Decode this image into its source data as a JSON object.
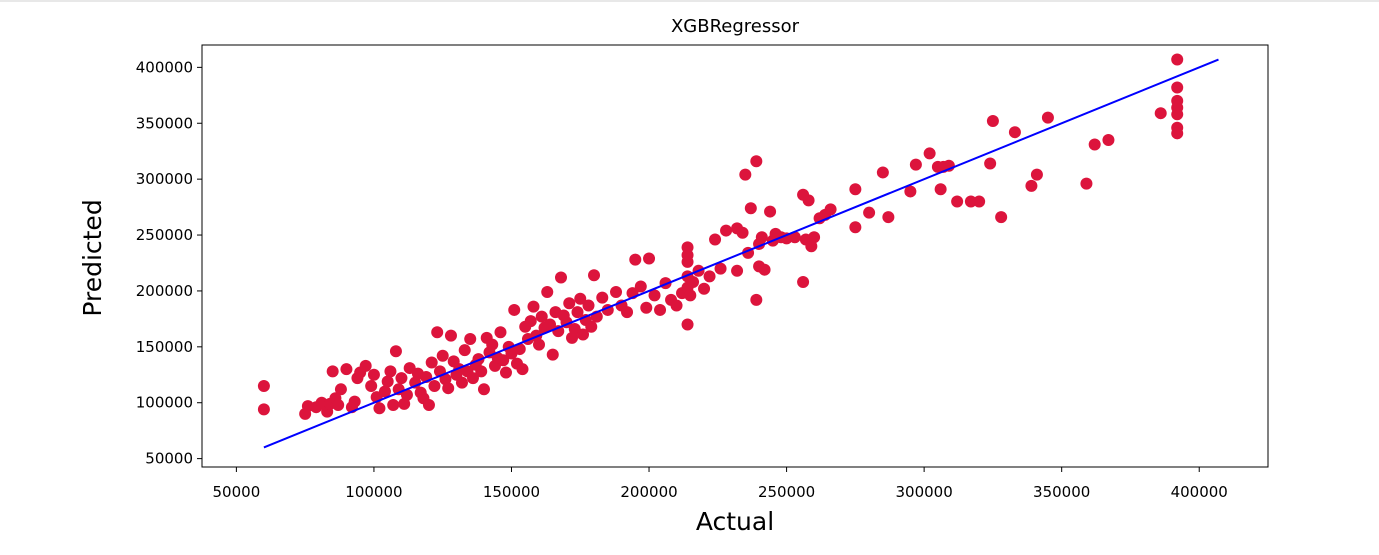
{
  "chart_data": {
    "type": "scatter",
    "title": "XGBRegressor",
    "xlabel": "Actual",
    "ylabel": "Predicted",
    "xlim": [
      37500,
      425000
    ],
    "ylim": [
      42500,
      420000
    ],
    "xticks": [
      50000,
      100000,
      150000,
      200000,
      250000,
      300000,
      350000,
      400000
    ],
    "yticks": [
      50000,
      100000,
      150000,
      200000,
      250000,
      300000,
      350000,
      400000
    ],
    "xtick_labels": [
      "50000",
      "100000",
      "150000",
      "200000",
      "250000",
      "300000",
      "350000",
      "400000"
    ],
    "ytick_labels": [
      "50000",
      "100000",
      "150000",
      "200000",
      "250000",
      "300000",
      "350000",
      "400000"
    ],
    "grid": false,
    "colors": {
      "points": "#dc143c",
      "line": "#0000ff"
    },
    "fit_line": {
      "x": [
        60000,
        407000
      ],
      "y": [
        60000,
        407000
      ]
    },
    "points": [
      [
        60000,
        94000
      ],
      [
        60000,
        115000
      ],
      [
        75000,
        90000
      ],
      [
        76000,
        97000
      ],
      [
        79000,
        96000
      ],
      [
        81000,
        100000
      ],
      [
        83000,
        92000
      ],
      [
        84000,
        99000
      ],
      [
        85000,
        128000
      ],
      [
        86000,
        104000
      ],
      [
        87000,
        98000
      ],
      [
        88000,
        112000
      ],
      [
        90000,
        130000
      ],
      [
        92000,
        96000
      ],
      [
        93000,
        101000
      ],
      [
        94000,
        122000
      ],
      [
        95000,
        127000
      ],
      [
        97000,
        133000
      ],
      [
        99000,
        115000
      ],
      [
        100000,
        125000
      ],
      [
        101000,
        105000
      ],
      [
        102000,
        95000
      ],
      [
        104000,
        110000
      ],
      [
        105000,
        119000
      ],
      [
        106000,
        128000
      ],
      [
        107000,
        98000
      ],
      [
        108000,
        146000
      ],
      [
        109000,
        112000
      ],
      [
        110000,
        122000
      ],
      [
        111000,
        99000
      ],
      [
        112000,
        107000
      ],
      [
        113000,
        131000
      ],
      [
        115000,
        118000
      ],
      [
        116000,
        126000
      ],
      [
        117000,
        109000
      ],
      [
        118000,
        104000
      ],
      [
        119000,
        123000
      ],
      [
        120000,
        98000
      ],
      [
        121000,
        136000
      ],
      [
        122000,
        115000
      ],
      [
        123000,
        163000
      ],
      [
        124000,
        128000
      ],
      [
        125000,
        142000
      ],
      [
        126000,
        121000
      ],
      [
        127000,
        113000
      ],
      [
        128000,
        160000
      ],
      [
        129000,
        137000
      ],
      [
        130000,
        125000
      ],
      [
        131000,
        130000
      ],
      [
        132000,
        118000
      ],
      [
        133000,
        147000
      ],
      [
        134000,
        128000
      ],
      [
        135000,
        157000
      ],
      [
        136000,
        122000
      ],
      [
        137000,
        134000
      ],
      [
        138000,
        139000
      ],
      [
        139000,
        128000
      ],
      [
        140000,
        112000
      ],
      [
        141000,
        158000
      ],
      [
        142000,
        145000
      ],
      [
        143000,
        152000
      ],
      [
        144000,
        133000
      ],
      [
        145000,
        140000
      ],
      [
        146000,
        163000
      ],
      [
        147000,
        138000
      ],
      [
        148000,
        127000
      ],
      [
        149000,
        150000
      ],
      [
        150000,
        144000
      ],
      [
        151000,
        183000
      ],
      [
        152000,
        135000
      ],
      [
        153000,
        148000
      ],
      [
        154000,
        130000
      ],
      [
        155000,
        168000
      ],
      [
        156000,
        157000
      ],
      [
        157000,
        173000
      ],
      [
        158000,
        186000
      ],
      [
        159000,
        160000
      ],
      [
        160000,
        152000
      ],
      [
        161000,
        177000
      ],
      [
        162000,
        167000
      ],
      [
        163000,
        199000
      ],
      [
        164000,
        170000
      ],
      [
        165000,
        143000
      ],
      [
        166000,
        181000
      ],
      [
        167000,
        164000
      ],
      [
        168000,
        212000
      ],
      [
        169000,
        178000
      ],
      [
        170000,
        172000
      ],
      [
        171000,
        189000
      ],
      [
        172000,
        158000
      ],
      [
        173000,
        166000
      ],
      [
        174000,
        181000
      ],
      [
        175000,
        193000
      ],
      [
        176000,
        161000
      ],
      [
        177000,
        174000
      ],
      [
        178000,
        187000
      ],
      [
        179000,
        168000
      ],
      [
        180000,
        214000
      ],
      [
        181000,
        177000
      ],
      [
        183000,
        194000
      ],
      [
        185000,
        183000
      ],
      [
        188000,
        199000
      ],
      [
        190000,
        187000
      ],
      [
        192000,
        181000
      ],
      [
        194000,
        198000
      ],
      [
        195000,
        228000
      ],
      [
        197000,
        204000
      ],
      [
        199000,
        185000
      ],
      [
        200000,
        229000
      ],
      [
        202000,
        196000
      ],
      [
        204000,
        183000
      ],
      [
        206000,
        207000
      ],
      [
        208000,
        192000
      ],
      [
        210000,
        187000
      ],
      [
        212000,
        198000
      ],
      [
        214000,
        239000
      ],
      [
        214000,
        232000
      ],
      [
        214000,
        226000
      ],
      [
        214000,
        213000
      ],
      [
        214000,
        203000
      ],
      [
        214000,
        170000
      ],
      [
        215000,
        196000
      ],
      [
        216000,
        208000
      ],
      [
        218000,
        218000
      ],
      [
        220000,
        202000
      ],
      [
        222000,
        213000
      ],
      [
        224000,
        246000
      ],
      [
        226000,
        220000
      ],
      [
        228000,
        254000
      ],
      [
        232000,
        218000
      ],
      [
        232000,
        256000
      ],
      [
        234000,
        252000
      ],
      [
        235000,
        304000
      ],
      [
        236000,
        234000
      ],
      [
        237000,
        274000
      ],
      [
        239000,
        316000
      ],
      [
        239000,
        192000
      ],
      [
        240000,
        242000
      ],
      [
        240000,
        222000
      ],
      [
        241000,
        248000
      ],
      [
        242000,
        219000
      ],
      [
        244000,
        271000
      ],
      [
        245000,
        245000
      ],
      [
        246000,
        251000
      ],
      [
        248000,
        248000
      ],
      [
        250000,
        247000
      ],
      [
        253000,
        248000
      ],
      [
        256000,
        286000
      ],
      [
        256000,
        208000
      ],
      [
        257000,
        246000
      ],
      [
        258000,
        281000
      ],
      [
        259000,
        240000
      ],
      [
        260000,
        248000
      ],
      [
        262000,
        265000
      ],
      [
        264000,
        268000
      ],
      [
        266000,
        273000
      ],
      [
        275000,
        257000
      ],
      [
        275000,
        291000
      ],
      [
        280000,
        270000
      ],
      [
        285000,
        306000
      ],
      [
        287000,
        266000
      ],
      [
        295000,
        289000
      ],
      [
        297000,
        313000
      ],
      [
        302000,
        323000
      ],
      [
        305000,
        311000
      ],
      [
        306000,
        291000
      ],
      [
        307000,
        311000
      ],
      [
        309000,
        312000
      ],
      [
        312000,
        280000
      ],
      [
        317000,
        280000
      ],
      [
        320000,
        280000
      ],
      [
        324000,
        314000
      ],
      [
        325000,
        352000
      ],
      [
        328000,
        266000
      ],
      [
        333000,
        342000
      ],
      [
        339000,
        294000
      ],
      [
        341000,
        304000
      ],
      [
        345000,
        355000
      ],
      [
        359000,
        296000
      ],
      [
        362000,
        331000
      ],
      [
        367000,
        335000
      ],
      [
        386000,
        359000
      ],
      [
        392000,
        407000
      ],
      [
        392000,
        382000
      ],
      [
        392000,
        370000
      ],
      [
        392000,
        364000
      ],
      [
        392000,
        358000
      ],
      [
        392000,
        346000
      ],
      [
        392000,
        341000
      ]
    ]
  }
}
